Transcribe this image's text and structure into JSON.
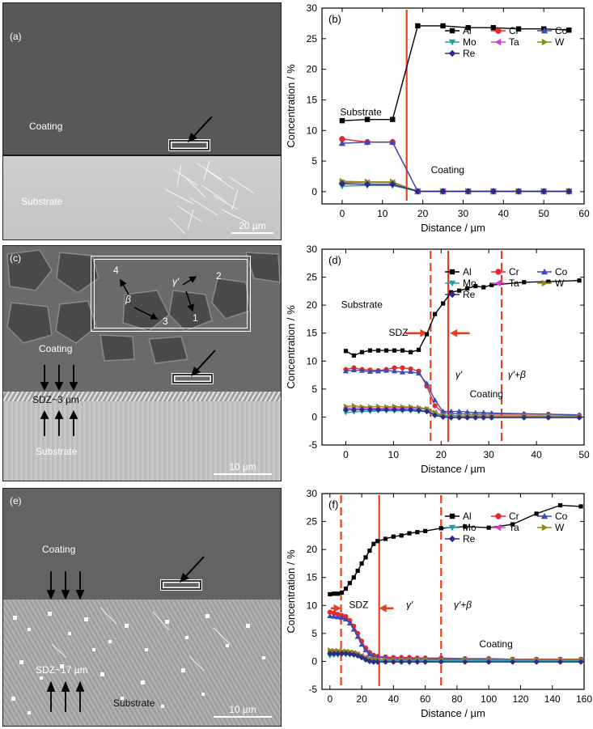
{
  "micrographs": [
    {
      "panel": "(a)",
      "coating": "Coating",
      "substrate": "Substrate",
      "scale": "20 µm"
    },
    {
      "panel": "(c)",
      "coating": "Coating",
      "substrate": "Substrate",
      "scale": "10 µm",
      "sdz": "SDZ~3 µm",
      "markers": {
        "m4": "4",
        "m2": "2",
        "m3": "3",
        "m1": "1",
        "beta": "β",
        "gamma": "γ′"
      }
    },
    {
      "panel": "(e)",
      "coating": "Coating",
      "substrate": "Substrate",
      "scale": "10 µm",
      "sdz": "SDZ~17 µm"
    }
  ],
  "colors": {
    "Al": "#000000",
    "Cr": "#e8282d",
    "Co": "#3a4bb8",
    "Mo": "#20a0a0",
    "Ta": "#d040d0",
    "W": "#8a8a10",
    "Re": "#2b2b8a",
    "interface": "#e8401c"
  },
  "chart_data": [
    {
      "type": "line",
      "panel": "(b)",
      "xlabel": "Distance / µm",
      "ylabel": "Concentration / %",
      "xlim": [
        -5,
        60
      ],
      "ylim": [
        -2,
        30
      ],
      "xticks": [
        0,
        10,
        20,
        30,
        40,
        50,
        60
      ],
      "yticks": [
        0,
        5,
        10,
        15,
        20,
        25,
        30
      ],
      "legend": "top-right",
      "legend_ncol": 3,
      "annotations": [
        {
          "text": "Substrate",
          "x": -0.5,
          "y": 12.5
        },
        {
          "text": "Coating",
          "x": 22,
          "y": 3
        }
      ],
      "solid_lines": [
        16
      ],
      "dashed_lines": [],
      "arrows": [],
      "x": [
        0,
        6.25,
        12.5,
        18.75,
        25,
        31.25,
        37.5,
        43.75,
        50,
        56.25
      ],
      "series": [
        {
          "name": "Al",
          "marker": "square",
          "values": [
            11.6,
            11.8,
            11.8,
            27.1,
            27.1,
            26.8,
            26.8,
            26.6,
            26.6,
            26.4
          ]
        },
        {
          "name": "Cr",
          "marker": "circle",
          "values": [
            8.6,
            8.1,
            8.1,
            0.05,
            0.05,
            0.05,
            0.05,
            0.05,
            0.05,
            0.05
          ]
        },
        {
          "name": "Co",
          "marker": "triangle-up",
          "values": [
            7.9,
            8.1,
            8.1,
            0.05,
            0.05,
            0.05,
            0.05,
            0.05,
            0.05,
            0.05
          ]
        },
        {
          "name": "Mo",
          "marker": "triangle-down",
          "values": [
            0.9,
            1.0,
            1.0,
            0.05,
            0.05,
            0.05,
            0.05,
            0.05,
            0.05,
            0.05
          ]
        },
        {
          "name": "Ta",
          "marker": "triangle-left",
          "values": [
            1.5,
            1.5,
            1.5,
            0.05,
            0.05,
            0.05,
            0.05,
            0.05,
            0.05,
            0.05
          ]
        },
        {
          "name": "W",
          "marker": "triangle-right",
          "values": [
            1.7,
            1.6,
            1.6,
            0.05,
            0.05,
            0.05,
            0.05,
            0.05,
            0.05,
            0.05
          ]
        },
        {
          "name": "Re",
          "marker": "diamond",
          "values": [
            1.3,
            1.2,
            1.2,
            0.05,
            0.05,
            0.05,
            0.05,
            0.05,
            0.05,
            0.05
          ]
        }
      ]
    },
    {
      "type": "line",
      "panel": "(d)",
      "xlabel": "Distance / µm",
      "ylabel": "Concentration / %",
      "xlim": [
        -5,
        50
      ],
      "ylim": [
        -5,
        30
      ],
      "xticks": [
        0,
        10,
        20,
        30,
        40,
        50
      ],
      "yticks": [
        -5,
        0,
        5,
        10,
        15,
        20,
        25,
        30
      ],
      "legend": "top-right",
      "legend_ncol": 3,
      "annotations": [
        {
          "text": "Substrate",
          "x": -1,
          "y": 19.5
        },
        {
          "text": "SDZ",
          "x": 9,
          "y": 14.5
        },
        {
          "text": "γ′",
          "x": 23,
          "y": 7
        },
        {
          "text": "γ′+β",
          "x": 34,
          "y": 7
        },
        {
          "text": "Coating",
          "x": 26,
          "y": 3.5
        }
      ],
      "solid_lines": [
        21.5
      ],
      "dashed_lines": [
        17.8,
        32.7
      ],
      "arrows": [
        {
          "from": 12.5,
          "to": 16.8,
          "y": 15
        },
        {
          "from": 26,
          "to": 22.2,
          "y": 15
        }
      ],
      "x": [
        0,
        1.7,
        3.4,
        5.1,
        6.8,
        8.5,
        10.2,
        11.9,
        13.6,
        15.3,
        17,
        18.7,
        20.4,
        22.1,
        23.8,
        25.5,
        27.2,
        28.9,
        30.6,
        37.4,
        42.5,
        49
      ],
      "series": [
        {
          "name": "Al",
          "marker": "square",
          "values": [
            11.8,
            11.0,
            11.6,
            11.9,
            11.9,
            11.9,
            11.9,
            11.9,
            11.6,
            12.0,
            14.8,
            18.4,
            20.3,
            22.3,
            22.6,
            23.0,
            23.4,
            23.2,
            23.6,
            24.1,
            24.2,
            24.4
          ]
        },
        {
          "name": "Cr",
          "marker": "circle",
          "values": [
            8.5,
            8.8,
            8.5,
            8.4,
            8.3,
            8.5,
            8.8,
            8.8,
            8.6,
            8.2,
            5.5,
            2.0,
            0.8,
            0.6,
            0.6,
            0.5,
            0.5,
            0.5,
            0.5,
            0.5,
            0.5,
            0.3
          ]
        },
        {
          "name": "Co",
          "marker": "triangle-up",
          "values": [
            8.2,
            8.4,
            8.3,
            8.1,
            8.2,
            8.3,
            8.2,
            8.0,
            8.1,
            7.8,
            6.0,
            3.0,
            1.0,
            1.0,
            1.0,
            0.9,
            0.8,
            0.8,
            0.7,
            0.6,
            0.5,
            0.4
          ]
        },
        {
          "name": "Mo",
          "marker": "triangle-down",
          "values": [
            0.8,
            0.9,
            1.0,
            1.0,
            1.1,
            1.1,
            1.1,
            1.1,
            1.1,
            1.0,
            1.0,
            0.5,
            0.2,
            0.2,
            0.1,
            0.1,
            0.1,
            0.1,
            0.1,
            0.1,
            0.1,
            0.1
          ]
        },
        {
          "name": "Ta",
          "marker": "triangle-left",
          "values": [
            1.6,
            1.6,
            1.6,
            1.6,
            1.5,
            1.6,
            1.6,
            1.6,
            1.6,
            1.5,
            1.4,
            0.8,
            0.3,
            0.3,
            0.2,
            0.2,
            0.2,
            0.2,
            0.2,
            0.2,
            0.2,
            0.2
          ]
        },
        {
          "name": "W",
          "marker": "triangle-right",
          "values": [
            1.9,
            2.0,
            1.8,
            1.8,
            1.9,
            1.8,
            1.9,
            1.8,
            1.8,
            1.7,
            1.5,
            0.8,
            0.3,
            0.3,
            0.2,
            0.2,
            0.2,
            0.2,
            0.2,
            0.2,
            0.2,
            0.2
          ]
        },
        {
          "name": "Re",
          "marker": "diamond",
          "values": [
            1.3,
            1.3,
            1.3,
            1.3,
            1.3,
            1.3,
            1.3,
            1.3,
            1.3,
            1.2,
            1.0,
            0.3,
            0.0,
            -0.1,
            -0.1,
            -0.1,
            -0.1,
            -0.1,
            -0.1,
            -0.1,
            -0.1,
            -0.1
          ]
        }
      ]
    },
    {
      "type": "line",
      "panel": "(f)",
      "xlabel": "Distance / µm",
      "ylabel": "Concentration / %",
      "xlim": [
        -5,
        160
      ],
      "ylim": [
        -5,
        30
      ],
      "xticks": [
        0,
        20,
        40,
        60,
        80,
        100,
        120,
        140,
        160
      ],
      "yticks": [
        -5,
        0,
        5,
        10,
        15,
        20,
        25,
        30
      ],
      "legend": "top-right",
      "legend_ncol": 3,
      "annotations": [
        {
          "text": "SDZ",
          "x": 12,
          "y": 9.5
        },
        {
          "text": "γ′",
          "x": 48,
          "y": 9.5
        },
        {
          "text": "γ′+β",
          "x": 78,
          "y": 9.5
        },
        {
          "text": "Coating",
          "x": 94,
          "y": 2.5
        }
      ],
      "solid_lines": [
        31
      ],
      "dashed_lines": [
        7,
        70
      ],
      "arrows": [
        {
          "from": 0.5,
          "to": 6,
          "y": 9.5
        },
        {
          "from": 40,
          "to": 32,
          "y": 9.5
        }
      ],
      "x": [
        0,
        2.5,
        5,
        7.5,
        10,
        12.5,
        15,
        17.5,
        20,
        22.5,
        25,
        27.5,
        30,
        35,
        40,
        45,
        50,
        55,
        60,
        70,
        85,
        100,
        115,
        130,
        145,
        158
      ],
      "series": [
        {
          "name": "Al",
          "marker": "square",
          "values": [
            12.0,
            12.1,
            12.1,
            12.3,
            13.0,
            14.0,
            15.0,
            16.2,
            17.5,
            18.6,
            19.8,
            21.0,
            21.5,
            21.9,
            22.3,
            22.5,
            22.9,
            23.1,
            23.3,
            23.8,
            24.1,
            23.9,
            24.5,
            26.4,
            27.9,
            27.7
          ]
        },
        {
          "name": "Cr",
          "marker": "circle",
          "values": [
            8.8,
            8.6,
            8.4,
            8.2,
            8.0,
            7.3,
            6.3,
            5.0,
            3.6,
            2.4,
            1.6,
            1.1,
            0.9,
            0.8,
            0.7,
            0.7,
            0.7,
            0.6,
            0.6,
            0.6,
            0.5,
            0.5,
            0.4,
            0.4,
            0.4,
            0.4
          ]
        },
        {
          "name": "Co",
          "marker": "triangle-up",
          "values": [
            8.1,
            8.0,
            7.9,
            7.8,
            7.5,
            6.8,
            5.7,
            4.4,
            3.0,
            2.0,
            1.3,
            0.9,
            0.7,
            0.6,
            0.5,
            0.5,
            0.5,
            0.5,
            0.5,
            0.4,
            0.4,
            0.4,
            0.4,
            0.3,
            0.3,
            0.3
          ]
        },
        {
          "name": "Mo",
          "marker": "triangle-down",
          "values": [
            1.0,
            1.1,
            1.1,
            1.2,
            1.2,
            1.2,
            1.1,
            1.0,
            0.7,
            0.5,
            0.3,
            0.2,
            0.1,
            0.1,
            0.1,
            0.1,
            0.1,
            0.1,
            0.1,
            0.1,
            0.1,
            0.1,
            0.1,
            0.1,
            0.1,
            0.1
          ]
        },
        {
          "name": "Ta",
          "marker": "triangle-left",
          "values": [
            1.8,
            1.8,
            1.7,
            1.7,
            1.7,
            1.6,
            1.5,
            1.3,
            1.0,
            0.7,
            0.5,
            0.4,
            0.3,
            0.3,
            0.3,
            0.3,
            0.3,
            0.3,
            0.3,
            0.3,
            0.3,
            0.3,
            0.3,
            0.3,
            0.3,
            0.3
          ]
        },
        {
          "name": "W",
          "marker": "triangle-right",
          "values": [
            2.0,
            1.9,
            1.9,
            1.8,
            1.8,
            1.7,
            1.6,
            1.4,
            1.0,
            0.7,
            0.5,
            0.4,
            0.3,
            0.3,
            0.3,
            0.3,
            0.3,
            0.3,
            0.3,
            0.3,
            0.3,
            0.3,
            0.3,
            0.3,
            0.3,
            0.3
          ]
        },
        {
          "name": "Re",
          "marker": "diamond",
          "values": [
            1.4,
            1.4,
            1.4,
            1.4,
            1.4,
            1.3,
            1.2,
            1.0,
            0.7,
            0.3,
            0.0,
            -0.1,
            -0.1,
            -0.1,
            -0.1,
            -0.1,
            -0.1,
            -0.1,
            -0.1,
            -0.1,
            -0.1,
            -0.1,
            -0.1,
            -0.1,
            -0.1,
            -0.1
          ]
        }
      ]
    }
  ]
}
